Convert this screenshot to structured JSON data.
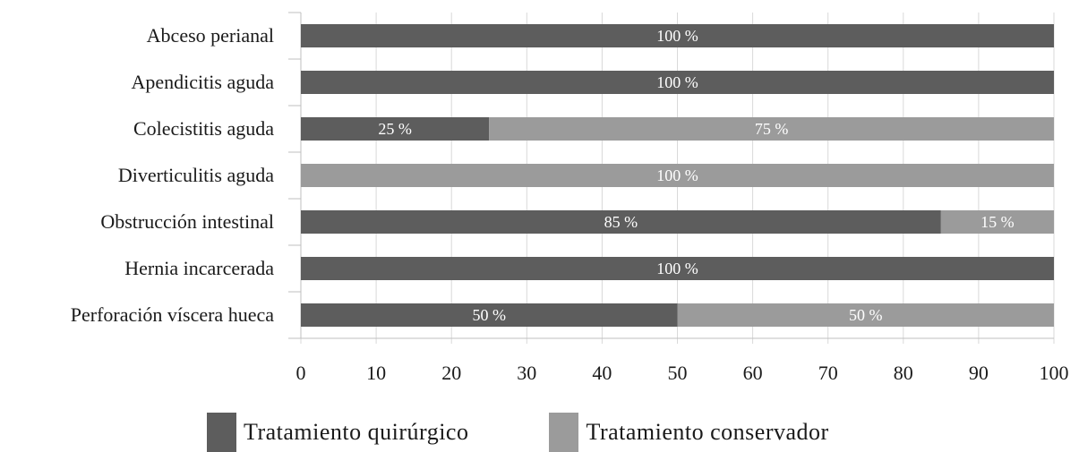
{
  "colors": {
    "surgical": "#5d5d5d",
    "conservative": "#9b9b9b",
    "grid": "#d9d9d9",
    "axis": "#bfbfbf"
  },
  "legend": {
    "surgical_label": "Tratamiento quirúrgico",
    "conservative_label": "Tratamiento conservador"
  },
  "chart_data": {
    "type": "bar",
    "orientation": "horizontal",
    "stacked": true,
    "categories": [
      "Abceso perianal",
      "Apendicitis aguda",
      "Colecistitis aguda",
      "Diverticulitis aguda",
      "Obstrucción intestinal",
      "Hernia incarcerada",
      "Perforación víscera hueca"
    ],
    "series": [
      {
        "name": "Tratamiento quirúrgico",
        "values": [
          100,
          100,
          25,
          0,
          85,
          100,
          50
        ]
      },
      {
        "name": "Tratamiento conservador",
        "values": [
          0,
          0,
          75,
          100,
          15,
          0,
          50
        ]
      }
    ],
    "data_labels": {
      "Tratamiento quirúrgico": [
        "100 %",
        "100 %",
        "25 %",
        "",
        "85 %",
        "100 %",
        "50 %"
      ],
      "Tratamiento conservador": [
        "",
        "",
        "75 %",
        "100 %",
        "15 %",
        "",
        "50 %"
      ]
    },
    "xlim": [
      0,
      100
    ],
    "xticks": [
      0,
      10,
      20,
      30,
      40,
      50,
      60,
      70,
      80,
      90,
      100
    ],
    "grid": true,
    "legend_position": "bottom"
  }
}
